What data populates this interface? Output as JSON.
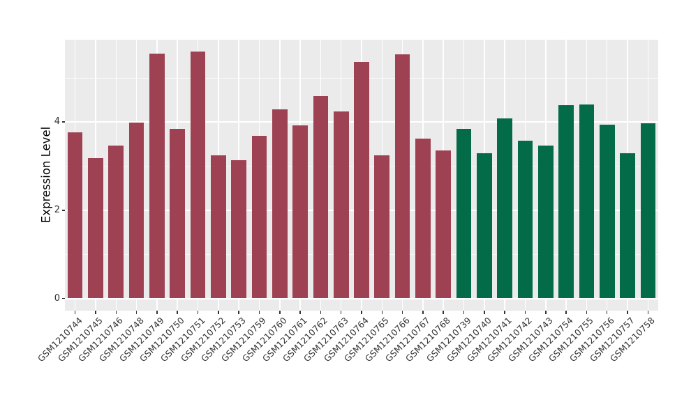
{
  "chart_data": {
    "type": "bar",
    "title": "",
    "xlabel": "",
    "ylabel": "Expression Level",
    "categories": [
      "GSM1210744",
      "GSM1210745",
      "GSM1210746",
      "GSM1210748",
      "GSM1210749",
      "GSM1210750",
      "GSM1210751",
      "GSM1210752",
      "GSM1210753",
      "GSM1210759",
      "GSM1210760",
      "GSM1210761",
      "GSM1210762",
      "GSM1210763",
      "GSM1210764",
      "GSM1210765",
      "GSM1210766",
      "GSM1210767",
      "GSM1210768",
      "GSM1210739",
      "GSM1210740",
      "GSM1210741",
      "GSM1210742",
      "GSM1210743",
      "GSM1210754",
      "GSM1210755",
      "GSM1210756",
      "GSM1210757",
      "GSM1210758"
    ],
    "values": [
      3.76,
      3.18,
      3.47,
      3.98,
      5.55,
      3.85,
      5.6,
      3.24,
      3.14,
      3.69,
      4.29,
      3.92,
      4.59,
      4.24,
      5.36,
      3.24,
      5.54,
      3.62,
      3.36,
      3.85,
      3.3,
      4.09,
      3.57,
      3.47,
      4.38,
      4.4,
      3.94,
      3.3,
      3.97
    ],
    "bar_colors": [
      "#9E4253",
      "#9E4253",
      "#9E4253",
      "#9E4253",
      "#9E4253",
      "#9E4253",
      "#9E4253",
      "#9E4253",
      "#9E4253",
      "#9E4253",
      "#9E4253",
      "#9E4253",
      "#9E4253",
      "#9E4253",
      "#9E4253",
      "#9E4253",
      "#9E4253",
      "#9E4253",
      "#9E4253",
      "#046B48",
      "#046B48",
      "#046B48",
      "#046B48",
      "#046B48",
      "#046B48",
      "#046B48",
      "#046B48",
      "#046B48",
      "#046B48"
    ],
    "groups": [
      {
        "name": "maroon-group",
        "color": "#9E4253",
        "count": 19
      },
      {
        "name": "green-group",
        "color": "#046B48",
        "count": 10
      }
    ],
    "yticks": [
      0,
      2,
      4
    ],
    "yticks_minor": [
      1,
      3,
      5
    ],
    "ylim": [
      0,
      5.87
    ],
    "grid": true,
    "legend": false,
    "panel_background": "#EBEBEB",
    "gridline_color": "#FFFFFF",
    "tick_color": "#333333",
    "axis_text_color": "#333333",
    "axis_title_color": "#000000"
  }
}
